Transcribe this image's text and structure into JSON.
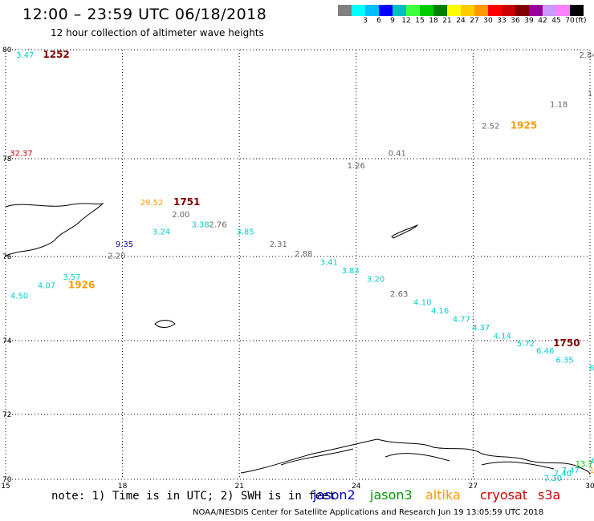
{
  "header": {
    "title": "12:00 – 23:59 UTC 06/18/2018",
    "subtitle": "12 hour collection of altimeter wave heights"
  },
  "scale": {
    "unit": "(ft)",
    "bins": [
      {
        "label": "",
        "color": "#808080"
      },
      {
        "label": "3",
        "color": "#00ffff"
      },
      {
        "label": "6",
        "color": "#00bfff"
      },
      {
        "label": "9",
        "color": "#0000ff"
      },
      {
        "label": "12",
        "color": "#00bfbf"
      },
      {
        "label": "15",
        "color": "#40ff40"
      },
      {
        "label": "18",
        "color": "#00cc00"
      },
      {
        "label": "21",
        "color": "#008000"
      },
      {
        "label": "24",
        "color": "#ffff00"
      },
      {
        "label": "27",
        "color": "#ffcc00"
      },
      {
        "label": "30",
        "color": "#ff9900"
      },
      {
        "label": "33",
        "color": "#ff0000"
      },
      {
        "label": "36",
        "color": "#cc0000"
      },
      {
        "label": "39",
        "color": "#800000"
      },
      {
        "label": "42",
        "color": "#990099"
      },
      {
        "label": "45",
        "color": "#cc99ff"
      },
      {
        "label": "70",
        "color": "#ff80ff"
      },
      {
        "label": "",
        "color": "#000000"
      }
    ]
  },
  "chart_data": {
    "type": "scatter",
    "title": "12:00 – 23:59 UTC 06/18/2018",
    "xlim": [
      15,
      30
    ],
    "ylim": [
      70,
      80
    ],
    "x_ticks": [
      "15",
      "18",
      "21",
      "24",
      "27",
      "30"
    ],
    "y_ticks": [
      "70",
      "72",
      "74",
      "76",
      "78",
      "80"
    ],
    "grid": true,
    "series_colors": {
      "jason2": "#0000cc",
      "jason3": "#009900",
      "altika": "#ff9900",
      "cryosat": "#cc0000",
      "s3a": "#cc0000",
      "grey": "#666666",
      "cyan": "#00cccc",
      "maroon": "#800000",
      "orange": "#ff9900",
      "darkblue": "#0000cc"
    },
    "labels": [
      {
        "x": 15.5,
        "y": 79.85,
        "text": "3.47",
        "color": "#00cccc"
      },
      {
        "x": 16.3,
        "y": 79.85,
        "text": "1252",
        "color": "#800000",
        "bold": true
      },
      {
        "x": 29.95,
        "y": 79.85,
        "text": "2.84",
        "color": "#666666"
      },
      {
        "x": 29.2,
        "y": 78.95,
        "text": "1.18",
        "color": "#666666"
      },
      {
        "x": 30.0,
        "y": 79.15,
        "text": "1",
        "color": "#666666"
      },
      {
        "x": 27.45,
        "y": 78.55,
        "text": "2.52",
        "color": "#666666"
      },
      {
        "x": 28.3,
        "y": 78.55,
        "text": "1925",
        "color": "#ff9900",
        "bold": true
      },
      {
        "x": 25.05,
        "y": 78.05,
        "text": "0.41",
        "color": "#666666"
      },
      {
        "x": 24.0,
        "y": 77.8,
        "text": "1.26",
        "color": "#666666"
      },
      {
        "x": 15.4,
        "y": 78.05,
        "text": "32.37",
        "color": "#cc0000"
      },
      {
        "x": 18.75,
        "y": 77.05,
        "text": "29.52",
        "color": "#ff9900"
      },
      {
        "x": 19.65,
        "y": 77.05,
        "text": "1751",
        "color": "#800000",
        "bold": true
      },
      {
        "x": 19.5,
        "y": 76.8,
        "text": "2.00",
        "color": "#666666"
      },
      {
        "x": 20.45,
        "y": 76.6,
        "text": "2.76",
        "color": "#666666"
      },
      {
        "x": 20.0,
        "y": 76.6,
        "text": "3.38",
        "color": "#00cccc"
      },
      {
        "x": 19.0,
        "y": 76.45,
        "text": "3.24",
        "color": "#00cccc"
      },
      {
        "x": 21.15,
        "y": 76.45,
        "text": "3.85",
        "color": "#00cccc"
      },
      {
        "x": 18.05,
        "y": 76.2,
        "text": "9.35",
        "color": "#0000cc"
      },
      {
        "x": 22.0,
        "y": 76.2,
        "text": "2.31",
        "color": "#666666"
      },
      {
        "x": 17.85,
        "y": 75.95,
        "text": "2.20",
        "color": "#666666"
      },
      {
        "x": 22.65,
        "y": 76.0,
        "text": "2.88",
        "color": "#666666"
      },
      {
        "x": 23.3,
        "y": 75.8,
        "text": "3.41",
        "color": "#00cccc"
      },
      {
        "x": 23.85,
        "y": 75.6,
        "text": "3.83",
        "color": "#00cccc"
      },
      {
        "x": 24.5,
        "y": 75.4,
        "text": "3.20",
        "color": "#00cccc"
      },
      {
        "x": 25.1,
        "y": 75.05,
        "text": "2.63",
        "color": "#666666"
      },
      {
        "x": 16.7,
        "y": 75.45,
        "text": "3.57",
        "color": "#00cccc"
      },
      {
        "x": 16.05,
        "y": 75.25,
        "text": "4.07",
        "color": "#00cccc"
      },
      {
        "x": 16.95,
        "y": 75.25,
        "text": "1926",
        "color": "#ff9900",
        "bold": true
      },
      {
        "x": 15.35,
        "y": 75.0,
        "text": "4.50",
        "color": "#00cccc"
      },
      {
        "x": 25.7,
        "y": 74.85,
        "text": "4.10",
        "color": "#00cccc"
      },
      {
        "x": 26.15,
        "y": 74.65,
        "text": "4.16",
        "color": "#00cccc"
      },
      {
        "x": 26.7,
        "y": 74.45,
        "text": "4.77",
        "color": "#00cccc"
      },
      {
        "x": 27.2,
        "y": 74.25,
        "text": "4.37",
        "color": "#00cccc"
      },
      {
        "x": 27.75,
        "y": 74.05,
        "text": "4.14",
        "color": "#00cccc"
      },
      {
        "x": 28.35,
        "y": 73.85,
        "text": "5.72",
        "color": "#00cccc"
      },
      {
        "x": 29.4,
        "y": 73.85,
        "text": "1750",
        "color": "#800000",
        "bold": true
      },
      {
        "x": 28.85,
        "y": 73.65,
        "text": "6.46",
        "color": "#00cccc"
      },
      {
        "x": 29.35,
        "y": 73.4,
        "text": "6.35",
        "color": "#00cccc"
      },
      {
        "x": 30.05,
        "y": 73.2,
        "text": "6",
        "color": "#00cccc"
      },
      {
        "x": 29.85,
        "y": 70.4,
        "text": "13.7",
        "color": "#00cc00"
      },
      {
        "x": 30.1,
        "y": 70.5,
        "text": "6",
        "color": "#00cccc"
      },
      {
        "x": 30.05,
        "y": 70.2,
        "text": "1",
        "color": "#ff9900"
      },
      {
        "x": 29.5,
        "y": 70.2,
        "text": "7.47",
        "color": "#00cccc"
      },
      {
        "x": 29.3,
        "y": 70.1,
        "text": "7.40",
        "color": "#00cccc"
      },
      {
        "x": 29.05,
        "y": 69.95,
        "text": "7.30",
        "color": "#00cccc"
      }
    ]
  },
  "footer": {
    "note": "note:  1) Time is in UTC;  2) SWH is in feet",
    "missions": [
      {
        "name": "jason2",
        "color": "#0000cc"
      },
      {
        "name": "jason3",
        "color": "#009900"
      },
      {
        "name": "altika",
        "color": "#ff9900"
      },
      {
        "name": "cryosat",
        "color": "#cc0000"
      },
      {
        "name": "s3a",
        "color": "#cc0000"
      }
    ],
    "credit": "NOAA/NESDIS Center for Satellite Applications and Research     Jun 19 13:05:59 UTC 2018"
  }
}
